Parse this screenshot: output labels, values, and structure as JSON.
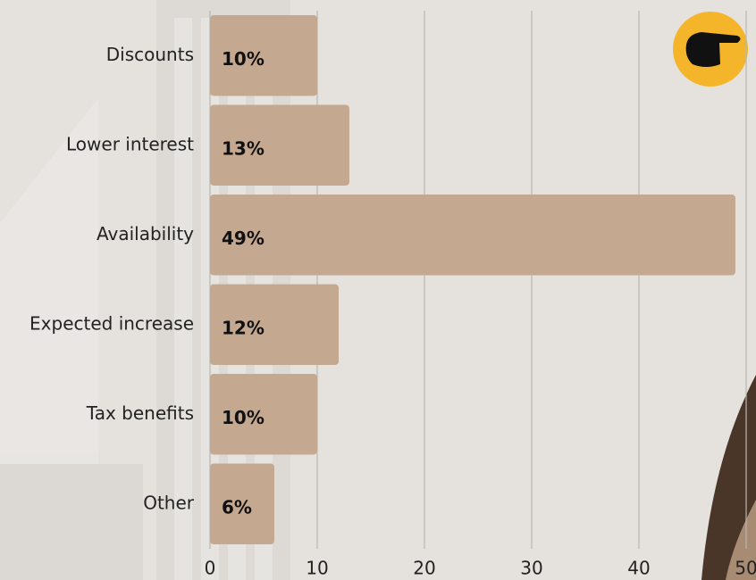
{
  "chart_data": {
    "type": "bar",
    "orientation": "horizontal",
    "categories": [
      "Discounts",
      "Lower interest",
      "Availability",
      "Expected increase",
      "Tax benefits",
      "Other"
    ],
    "values": [
      10,
      13,
      49,
      12,
      10,
      6
    ],
    "value_labels": [
      "10%",
      "13%",
      "49%",
      "12%",
      "10%",
      "6%"
    ],
    "color": "#c4a890",
    "xlim": [
      0,
      50
    ],
    "xticks": [
      0,
      10,
      20,
      30,
      40,
      50
    ],
    "grid": true
  }
}
